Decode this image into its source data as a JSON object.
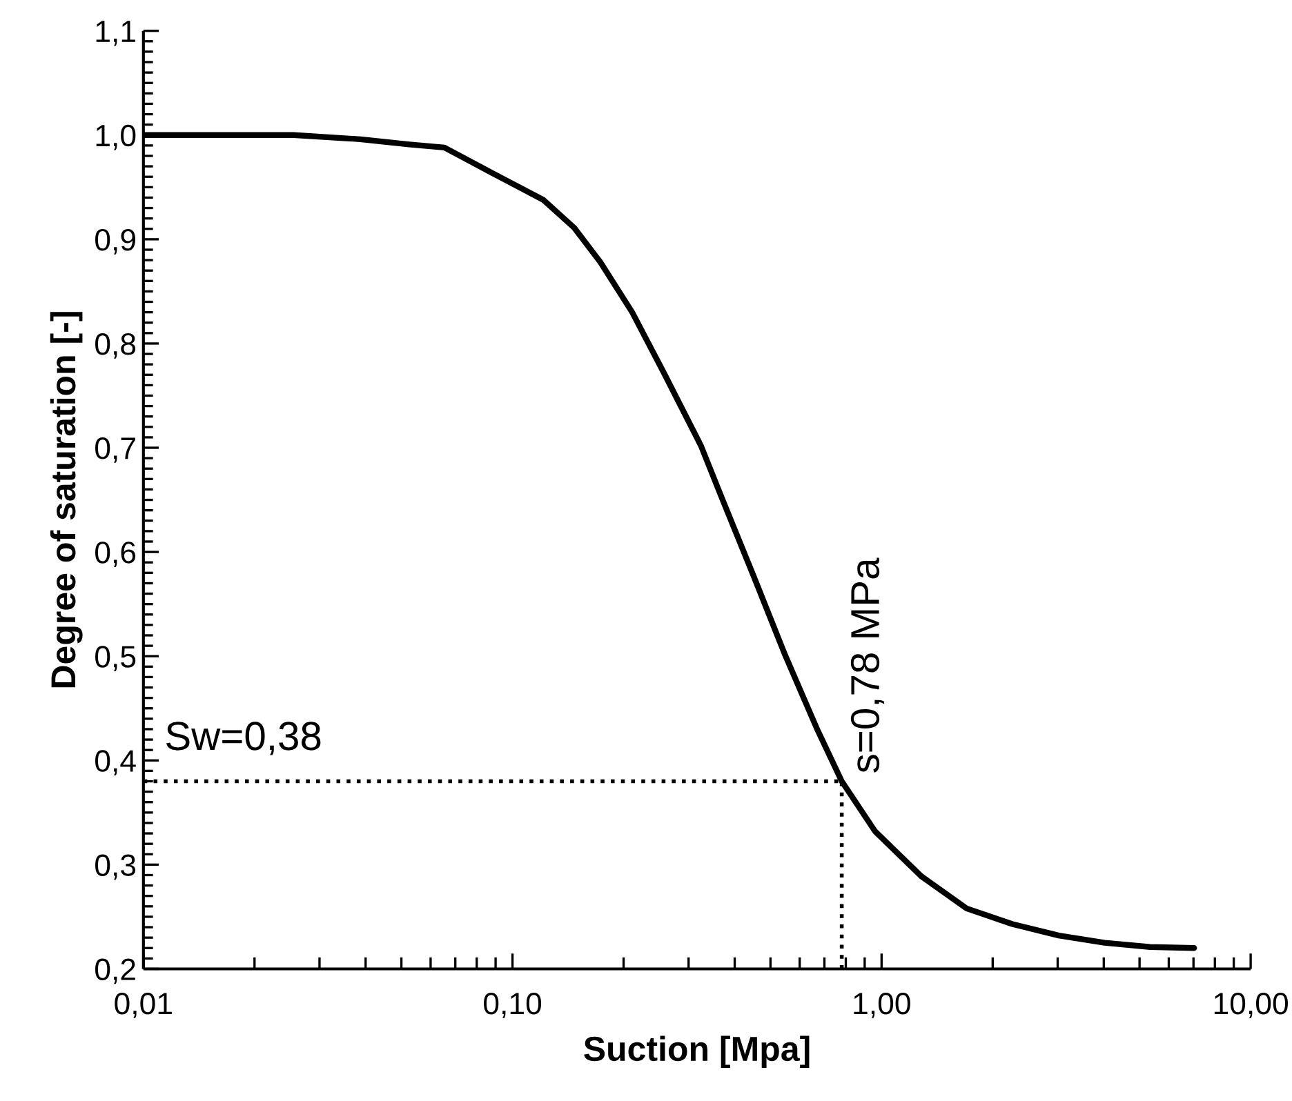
{
  "chart_data": {
    "type": "line",
    "xlabel": "Suction [Mpa]",
    "ylabel": "Degree of saturation [-]",
    "log": "x",
    "xlim": [
      0.01,
      10
    ],
    "ylim": [
      0.2,
      1.1
    ],
    "xticks": [
      {
        "value": 0.01,
        "label": "0,01"
      },
      {
        "value": 0.1,
        "label": "0,10"
      },
      {
        "value": 1,
        "label": "1,00"
      },
      {
        "value": 10,
        "label": "10,00"
      }
    ],
    "yticks": [
      {
        "value": 0.2,
        "label": "0,2"
      },
      {
        "value": 0.3,
        "label": "0,3"
      },
      {
        "value": 0.4,
        "label": "0,4"
      },
      {
        "value": 0.5,
        "label": "0,5"
      },
      {
        "value": 0.6,
        "label": "0,6"
      },
      {
        "value": 0.7,
        "label": "0,7"
      },
      {
        "value": 0.8,
        "label": "0,8"
      },
      {
        "value": 0.9,
        "label": "0,9"
      },
      {
        "value": 1.0,
        "label": "1,0"
      },
      {
        "value": 1.1,
        "label": "1,1"
      }
    ],
    "series": [
      {
        "color": "#000000",
        "x": [
          0.01,
          0.0255,
          0.0387,
          0.0525,
          0.0654,
          0.0898,
          0.121,
          0.147,
          0.173,
          0.211,
          0.257,
          0.324,
          0.369,
          0.45,
          0.548,
          0.667,
          0.78,
          0.96,
          1.28,
          1.7,
          2.26,
          3.02,
          4.02,
          5.34,
          7.03
        ],
        "values": [
          1.0,
          1.0,
          0.996,
          0.991,
          0.988,
          0.962,
          0.938,
          0.911,
          0.878,
          0.83,
          0.772,
          0.702,
          0.652,
          0.577,
          0.501,
          0.431,
          0.38,
          0.332,
          0.289,
          0.258,
          0.243,
          0.232,
          0.225,
          0.221,
          0.22
        ]
      }
    ],
    "ref_lines": [
      {
        "axis": "y",
        "value": 0.38,
        "label": "Sw=0,38",
        "line_style": "dotted",
        "color": "#000000"
      },
      {
        "axis": "x",
        "value": 0.78,
        "label": "s=0,78 MPa",
        "line_style": "dotted",
        "color": "#000000"
      }
    ],
    "grid": false,
    "legend": false,
    "marker": "none",
    "line_style": "solid"
  }
}
